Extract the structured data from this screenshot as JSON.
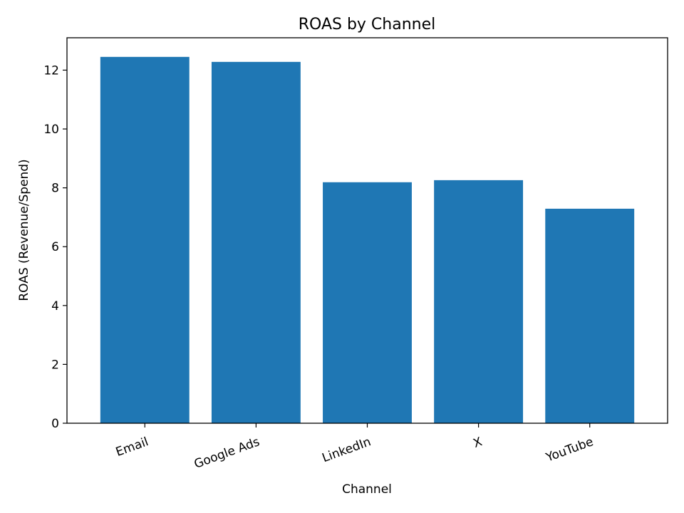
{
  "chart_data": {
    "type": "bar",
    "title": "ROAS by Channel",
    "xlabel": "Channel",
    "ylabel": "ROAS (Revenue/Spend)",
    "categories": [
      "Email",
      "Google Ads",
      "LinkedIn",
      "X",
      "YouTube"
    ],
    "values": [
      12.45,
      12.28,
      8.19,
      8.26,
      7.29
    ],
    "ylim": [
      0,
      13.1
    ],
    "yticks": [
      0,
      2,
      4,
      6,
      8,
      10,
      12
    ],
    "grid": false,
    "legend": "none",
    "colors": {
      "bar": "#1f77b4",
      "axis": "#000000",
      "background": "#ffffff"
    }
  }
}
